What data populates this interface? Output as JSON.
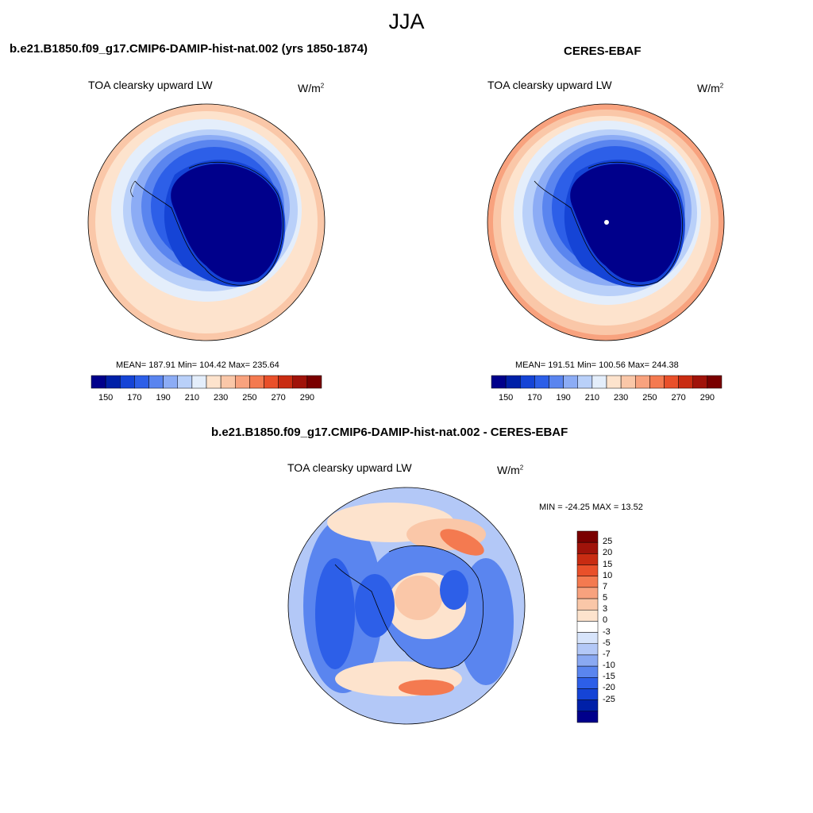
{
  "figure": {
    "season": "JJA"
  },
  "panels": {
    "model": {
      "title": "b.e21.B1850.f09_g17.CMIP6-DAMIP-hist-nat.002 (yrs 1850-1874)",
      "field": "TOA clearsky upward LW",
      "units_base": "W/m",
      "units_exp": "2",
      "stats": "MEAN= 187.91  Min= 104.42  Max= 235.64"
    },
    "obs": {
      "title": "CERES-EBAF",
      "field": "TOA clearsky upward LW",
      "units_base": "W/m",
      "units_exp": "2",
      "stats": "MEAN= 191.51  Min= 100.56  Max= 244.38"
    },
    "diff": {
      "title": "b.e21.B1850.f09_g17.CMIP6-DAMIP-hist-nat.002 - CERES-EBAF",
      "field": "TOA clearsky upward LW",
      "units_base": "W/m",
      "units_exp": "2",
      "stats": "MIN = -24.25 MAX =  13.52"
    }
  },
  "colorbar_abs": {
    "colors": [
      "#00008b",
      "#0020a8",
      "#1544d6",
      "#2d5fe8",
      "#5a85ef",
      "#8cacf5",
      "#b9d0f9",
      "#e4eefb",
      "#fde3cd",
      "#fac7a8",
      "#f8a27e",
      "#f47a50",
      "#e9502a",
      "#c92c12",
      "#a0130a",
      "#7a0000"
    ],
    "labels": [
      "150",
      "170",
      "190",
      "210",
      "230",
      "250",
      "270",
      "290"
    ]
  },
  "colorbar_diff": {
    "colors": [
      "#7a0000",
      "#a0130a",
      "#c92c12",
      "#e9502a",
      "#f47a50",
      "#f8a27e",
      "#fac7a8",
      "#fde3cd",
      "#ffffff",
      "#d7e4fb",
      "#b3c8f7",
      "#8aa9f2",
      "#5a85ef",
      "#2d5fe8",
      "#1544d6",
      "#0020a8",
      "#00008b"
    ],
    "labels": [
      "25",
      "20",
      "15",
      "10",
      "7",
      "5",
      "3",
      "0",
      "-3",
      "-5",
      "-7",
      "-10",
      "-15",
      "-20",
      "-25"
    ]
  }
}
